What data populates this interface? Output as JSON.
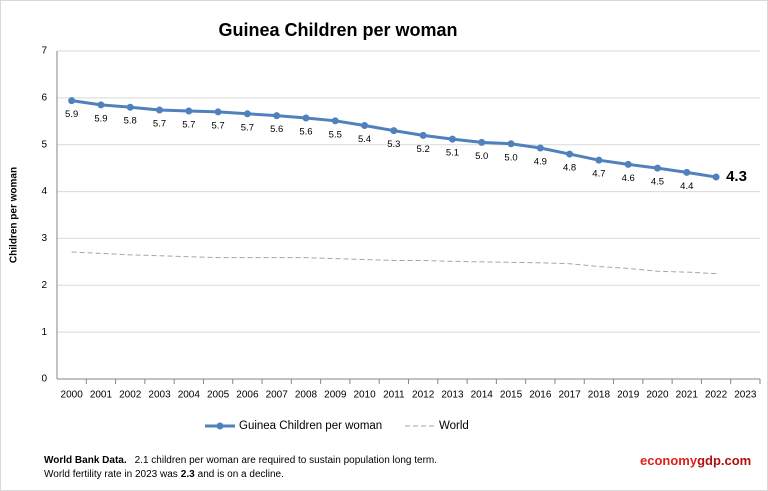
{
  "chart_data": {
    "type": "line",
    "title": "Guinea Children per woman",
    "y_label": "Children per woman",
    "categories": [
      "2000",
      "2001",
      "2002",
      "2003",
      "2004",
      "2005",
      "2006",
      "2007",
      "2008",
      "2009",
      "2010",
      "2011",
      "2012",
      "2013",
      "2014",
      "2015",
      "2016",
      "2017",
      "2018",
      "2019",
      "2020",
      "2021",
      "2022",
      "2023"
    ],
    "series": [
      {
        "name": "Guinea Children per woman",
        "color": "#4f81bd",
        "values": [
          5.94,
          5.85,
          5.8,
          5.74,
          5.72,
          5.7,
          5.66,
          5.62,
          5.57,
          5.51,
          5.41,
          5.3,
          5.2,
          5.12,
          5.05,
          5.02,
          4.93,
          4.8,
          4.67,
          4.58,
          4.5,
          4.41,
          4.31,
          null
        ],
        "value_labels": [
          "5.9",
          "5.9",
          "5.8",
          "5.7",
          "5.7",
          "5.7",
          "5.7",
          "5.6",
          "5.6",
          "5.5",
          "5.4",
          "5.3",
          "5.2",
          "5.1",
          "5.0",
          "5.0",
          "4.9",
          "4.8",
          "4.7",
          "4.6",
          "4.5",
          "4.4",
          "4.3",
          null
        ]
      },
      {
        "name": "World",
        "color": "#a6a6a6",
        "dashed": true,
        "values": [
          2.71,
          2.68,
          2.65,
          2.63,
          2.61,
          2.59,
          2.59,
          2.59,
          2.59,
          2.57,
          2.55,
          2.53,
          2.53,
          2.51,
          2.5,
          2.49,
          2.48,
          2.46,
          2.4,
          2.36,
          2.3,
          2.28,
          2.25,
          null
        ]
      }
    ],
    "ylim": [
      0,
      7
    ],
    "yticks": [
      0,
      1,
      2,
      3,
      4,
      5,
      6,
      7
    ],
    "grid": true,
    "legend": "bottom",
    "footnote": {
      "source": "World Bank Data.",
      "line1": "2.1 children per woman are required to sustain population long term.",
      "line2_before": "World fertility rate in 2023 was",
      "line2_value": "2.3",
      "line2_after": "and is on a decline."
    },
    "brand": {
      "part1": "economy",
      "part2": "gdp.com"
    }
  }
}
